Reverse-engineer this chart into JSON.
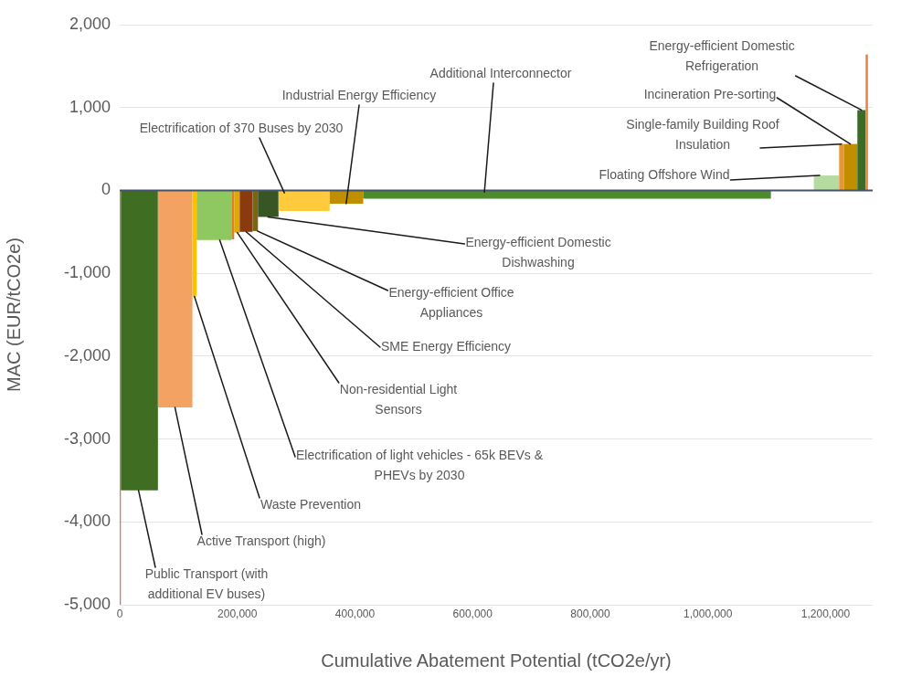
{
  "chart_data": {
    "type": "histogram",
    "xlabel": "Cumulative Abatement Potential (tCO2e/yr)",
    "ylabel": "MAC (EUR/tCO2e)",
    "bins": [
      0,
      2000,
      65000,
      123600,
      130800,
      190000,
      194600,
      204000,
      226000,
      235000,
      270000,
      357000,
      414000,
      1107000,
      1180000,
      1223000,
      1231000,
      1254000,
      1268000,
      1272000
    ],
    "values": [
      -5000,
      -3620,
      -2620,
      -1280,
      -600,
      -590,
      -510,
      -500,
      -490,
      -320,
      -250,
      -160,
      -100,
      null,
      180,
      560,
      560,
      970,
      1640
    ],
    "colors": [
      "#e2725b",
      "#3f6e23",
      "#f4a261",
      "#ffc000",
      "#8fc860",
      "#e67e22",
      "#e0a800",
      "#8b3a0f",
      "#7a6512",
      "#375623",
      "#ffcb3d",
      "#bf8f00",
      "#4e8a2e",
      null,
      "#b5dba0",
      "#e8953a",
      "#bf8f00",
      "#3b6b26",
      "#f08040"
    ],
    "xlim": [
      0,
      1280000
    ],
    "xticks": [
      {
        "value": 0,
        "label": "0"
      },
      {
        "value": 200000,
        "label": "200,000"
      },
      {
        "value": 400000,
        "label": "400,000"
      },
      {
        "value": 600000,
        "label": "600,000"
      },
      {
        "value": 800000,
        "label": "800,000"
      },
      {
        "value": 1000000,
        "label": "1,000,000"
      },
      {
        "value": 1200000,
        "label": "1,200,000"
      }
    ],
    "ylim": [
      -5000,
      2000
    ],
    "yticks": [
      {
        "value": -5000,
        "label": "-5,000"
      },
      {
        "value": -4000,
        "label": "-4,000"
      },
      {
        "value": -3000,
        "label": "-3,000"
      },
      {
        "value": -2000,
        "label": "-2,000"
      },
      {
        "value": -1000,
        "label": "-1,000"
      },
      0,
      {
        "value": 1000,
        "label": "1,000"
      },
      {
        "value": 2000,
        "label": "2,000"
      }
    ],
    "grid": "y",
    "legend": false,
    "annotations": [
      {
        "text": "Public Transport (with additional EV buses)",
        "x": 32000,
        "y": -3620
      },
      {
        "text": "Active Transport (high)",
        "x": 94000,
        "y": -2620
      },
      {
        "text": "Waste Prevention",
        "x": 127000,
        "y": -1280
      },
      {
        "text": "Electrification of light vehicles - 65k BEVs & PHEVs by 2030",
        "x": 170000,
        "y": -600
      },
      {
        "text": "Non-residential Light Sensors",
        "x": 200000,
        "y": -510
      },
      {
        "text": "SME Energy Efficiency",
        "x": 215000,
        "y": -500
      },
      {
        "text": "Energy-efficient Office Appliances",
        "x": 234000,
        "y": -490
      },
      {
        "text": "Energy-efficient Domestic Dishwashing",
        "x": 252000,
        "y": -320
      },
      {
        "text": "Electrification of 370 Buses by 2030",
        "x": 280000,
        "y": -30
      },
      {
        "text": "Industrial Energy Efficiency",
        "x": 385000,
        "y": -160
      },
      {
        "text": "Additional Interconnector",
        "x": 620000,
        "y": -20
      },
      {
        "text": "Floating Offshore Wind",
        "x": 1190000,
        "y": 180
      },
      {
        "text": "Single-family Building Roof Insulation",
        "x": 1227000,
        "y": 560
      },
      {
        "text": "Incineration Pre-sorting",
        "x": 1242000,
        "y": 560
      },
      {
        "text": "Energy-efficient Domestic Refrigeration",
        "x": 1261000,
        "y": 970
      }
    ]
  }
}
